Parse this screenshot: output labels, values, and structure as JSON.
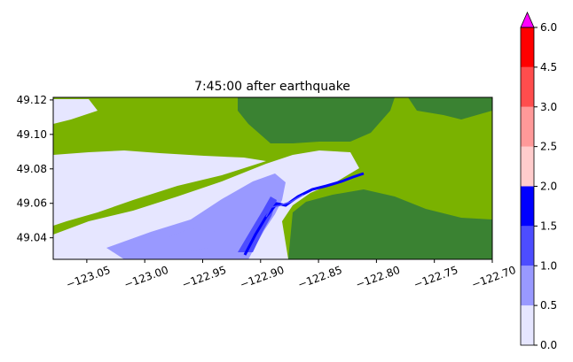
{
  "chart_data": {
    "type": "heatmap",
    "title": "7:45:00 after earthquake",
    "xlabel": "",
    "ylabel": "",
    "xlim": [
      -123.079,
      -122.7
    ],
    "ylim": [
      49.0275,
      49.1215
    ],
    "x_ticks": [
      -123.05,
      -123.0,
      -122.95,
      -122.9,
      -122.85,
      -122.8,
      -122.75,
      -122.7
    ],
    "x_tick_labels": [
      "−123.05",
      "−123.00",
      "−122.95",
      "−122.90",
      "−122.85",
      "−122.80",
      "−122.75",
      "−122.70"
    ],
    "y_ticks": [
      49.04,
      49.06,
      49.08,
      49.1,
      49.12
    ],
    "y_tick_labels": [
      "49.04",
      "49.06",
      "49.08",
      "49.10",
      "49.12"
    ],
    "grid": false,
    "colorbar": {
      "levels": [
        0.0,
        0.5,
        1.0,
        1.5,
        2.0,
        2.5,
        3.0,
        4.5,
        6.0
      ],
      "tick_labels": [
        "0.0",
        "0.5",
        "1.0",
        "1.5",
        "2.0",
        "2.5",
        "3.0",
        "4.5",
        "6.0"
      ],
      "colors": [
        "#e6e6ff",
        "#9999ff",
        "#4d4dff",
        "#0000ff",
        "#ffcccc",
        "#ff9999",
        "#ff4d4d",
        "#ff0000"
      ],
      "extend_max_color": "#ff00ff",
      "extend": "max"
    },
    "land_colors": {
      "low": "#7ab200",
      "high": "#3a8232"
    }
  }
}
